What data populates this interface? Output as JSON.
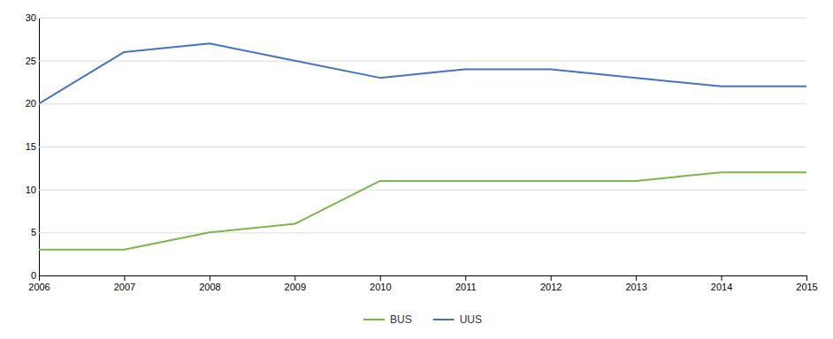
{
  "chart_data": {
    "type": "line",
    "x": [
      2006,
      2007,
      2008,
      2009,
      2010,
      2011,
      2012,
      2013,
      2014,
      2015
    ],
    "xlim": [
      2006,
      2015
    ],
    "xticks": [
      2006,
      2007,
      2008,
      2009,
      2010,
      2011,
      2012,
      2013,
      2014,
      2015
    ],
    "ylim": [
      0,
      30
    ],
    "yticks": [
      0,
      5,
      10,
      15,
      20,
      25,
      30
    ],
    "grid": true,
    "legend": "bottom",
    "series": [
      {
        "name": "BUS",
        "color": "#7ab648",
        "values": [
          3,
          3,
          5,
          6,
          11,
          11,
          11,
          11,
          12,
          12
        ]
      },
      {
        "name": "UUS",
        "color": "#4472c4",
        "values": [
          20,
          26,
          27,
          25,
          23,
          24,
          24,
          23,
          22,
          22
        ]
      }
    ]
  }
}
